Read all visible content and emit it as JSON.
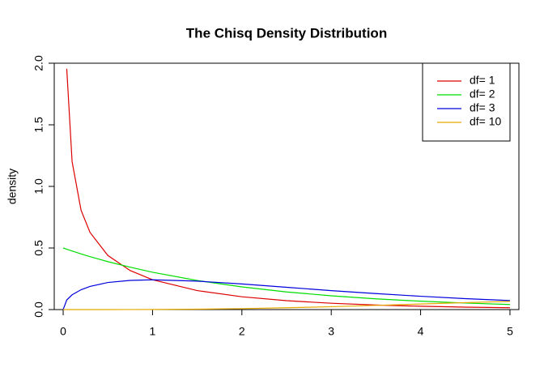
{
  "chart_data": {
    "type": "line",
    "title": "The Chisq Density Distribution",
    "y_label": "density",
    "x": [
      0,
      0.04,
      0.1,
      0.2,
      0.3,
      0.5,
      0.75,
      1,
      1.5,
      2,
      2.5,
      3,
      3.5,
      4,
      4.5,
      5
    ],
    "series": [
      {
        "name": "df= 1",
        "color": "#dd0000",
        "values": [
          null,
          1.955,
          1.2,
          0.807,
          0.627,
          0.439,
          0.317,
          0.242,
          0.154,
          0.104,
          0.0723,
          0.0514,
          0.0371,
          0.027,
          0.0198,
          0.0146
        ]
      },
      {
        "name": "df= 2",
        "color": "#00dd00",
        "values": [
          0.5,
          0.49,
          0.476,
          0.452,
          0.43,
          0.389,
          0.344,
          0.303,
          0.236,
          0.184,
          0.143,
          0.112,
          0.087,
          0.068,
          0.053,
          0.041
        ]
      },
      {
        "name": "df= 3",
        "color": "#0000dd",
        "values": [
          0,
          0.078,
          0.12,
          0.161,
          0.188,
          0.22,
          0.237,
          0.242,
          0.231,
          0.208,
          0.181,
          0.154,
          0.13,
          0.108,
          0.089,
          0.073
        ]
      },
      {
        "name": "df= 10",
        "color": "#e6a800",
        "values": [
          0,
          0,
          0,
          0,
          0,
          0.0001,
          0.0003,
          0.0008,
          0.0031,
          0.0077,
          0.0146,
          0.0235,
          0.034,
          0.0451,
          0.0563,
          0.0668
        ]
      }
    ],
    "xlim": [
      -0.1,
      5.1
    ],
    "ylim": [
      0,
      2
    ],
    "xticks": [
      0,
      1,
      2,
      3,
      4,
      5
    ],
    "yticks": [
      {
        "value": 0,
        "label": "0.0"
      },
      {
        "value": 0.5,
        "label": "0.5"
      },
      {
        "value": 1,
        "label": "1.0"
      },
      {
        "value": 1.5,
        "label": "1.5"
      },
      {
        "value": 2,
        "label": "2.0"
      }
    ],
    "legend": "topright",
    "grid": false
  }
}
